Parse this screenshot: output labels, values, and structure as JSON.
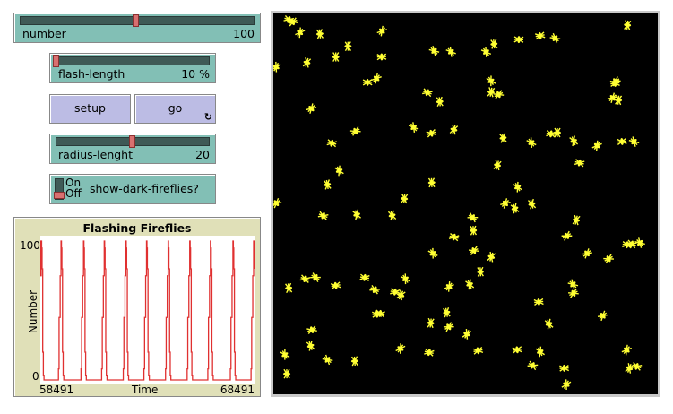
{
  "sliders": [
    {
      "name": "number",
      "value": "100",
      "min": 0,
      "max": 200,
      "current": 100
    },
    {
      "name": "flash-length",
      "value": "10 %",
      "min": 10,
      "max": 100,
      "current": 10
    },
    {
      "name": "radius-lenght",
      "value": "20",
      "min": 0,
      "max": 40,
      "current": 20
    }
  ],
  "buttons": {
    "setup": "setup",
    "go": "go",
    "go_icon": "forever-loop-icon"
  },
  "switch": {
    "on_label": "On",
    "off_label": "Off",
    "name": "show-dark-fireflies?",
    "state": "off"
  },
  "colors": {
    "widget": "#82bfb5",
    "button": "#bcbce4",
    "plot_bg": "#e0e0b8",
    "firefly": "#ffff33",
    "world_bg": "#000000",
    "pen": "#e03030"
  },
  "chart_data": {
    "type": "line",
    "title": "Flashing Fireflies",
    "xlabel": "Time",
    "ylabel": "Number",
    "xlim": [
      58491,
      68491
    ],
    "ylim": [
      0,
      100
    ],
    "x_tick_labels": [
      "58491",
      "68491"
    ],
    "y_tick_labels": [
      "100",
      "0"
    ],
    "series": [
      {
        "color": "#e03030",
        "peaks": [
          58533,
          59457,
          60508,
          61474,
          62483,
          63449,
          64457,
          65466,
          66432,
          67483,
          68449
        ]
      }
    ]
  }
}
